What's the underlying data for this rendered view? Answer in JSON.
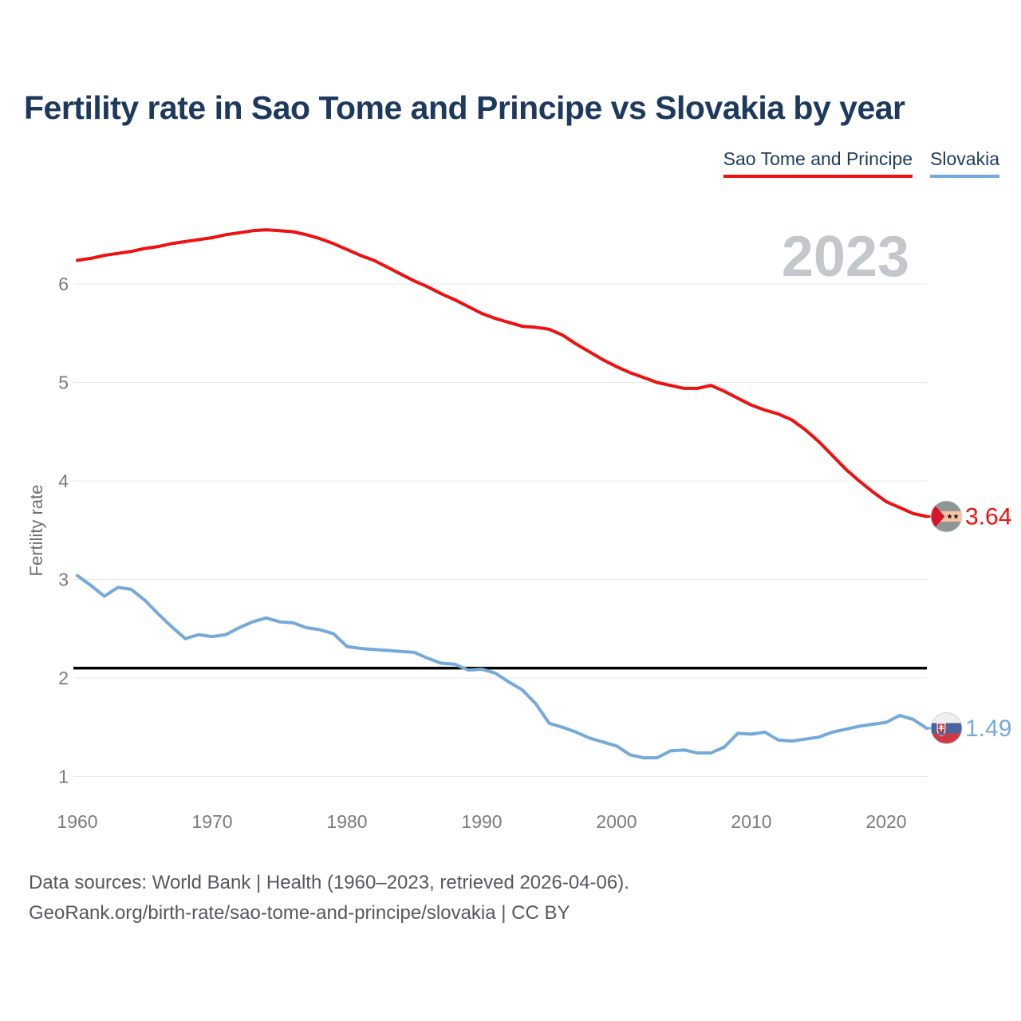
{
  "header": {
    "title": "Fertility rate in Sao Tome and Principe vs Slovakia by year"
  },
  "legend": [
    {
      "label": "Sao Tome and Principe",
      "color": "#ee1111"
    },
    {
      "label": "Slovakia",
      "color": "#74aadb"
    }
  ],
  "chart_data": {
    "type": "line",
    "title": "Fertility rate in Sao Tome and Principe vs Slovakia by year",
    "xlabel": "",
    "ylabel": "Fertility rate",
    "watermark": "2023",
    "grid": true,
    "legend_position": "top-right",
    "x_range": [
      1960,
      2023
    ],
    "xticks": [
      1960,
      1970,
      1980,
      1990,
      2000,
      2010,
      2020
    ],
    "yticks": [
      1,
      2,
      3,
      4,
      5,
      6
    ],
    "ylim": [
      1,
      6.8
    ],
    "reference_line": {
      "value": 2.1,
      "color": "#000000"
    },
    "series": [
      {
        "id": "st",
        "name": "Sao Tome and Principe",
        "color": "#ee1111",
        "end_label": "3.64",
        "flag": "sao-tome-and-principe",
        "values": [
          6.24,
          6.26,
          6.29,
          6.31,
          6.33,
          6.36,
          6.38,
          6.41,
          6.43,
          6.45,
          6.47,
          6.5,
          6.52,
          6.54,
          6.55,
          6.54,
          6.53,
          6.5,
          6.46,
          6.41,
          6.35,
          6.29,
          6.24,
          6.17,
          6.1,
          6.03,
          5.97,
          5.9,
          5.84,
          5.77,
          5.7,
          5.65,
          5.61,
          5.57,
          5.56,
          5.54,
          5.48,
          5.39,
          5.31,
          5.23,
          5.16,
          5.1,
          5.05,
          5.0,
          4.97,
          4.94,
          4.94,
          4.97,
          4.91,
          4.84,
          4.77,
          4.72,
          4.68,
          4.62,
          4.52,
          4.4,
          4.26,
          4.12,
          4.0,
          3.89,
          3.79,
          3.73,
          3.67,
          3.64
        ]
      },
      {
        "id": "sk",
        "name": "Slovakia",
        "color": "#74aadb",
        "end_label": "1.49",
        "flag": "slovakia",
        "values": [
          3.04,
          2.94,
          2.83,
          2.92,
          2.9,
          2.79,
          2.65,
          2.52,
          2.4,
          2.44,
          2.42,
          2.44,
          2.51,
          2.57,
          2.61,
          2.57,
          2.56,
          2.51,
          2.49,
          2.45,
          2.32,
          2.3,
          2.29,
          2.28,
          2.27,
          2.26,
          2.2,
          2.15,
          2.14,
          2.08,
          2.09,
          2.05,
          1.96,
          1.88,
          1.74,
          1.54,
          1.5,
          1.45,
          1.39,
          1.35,
          1.31,
          1.22,
          1.19,
          1.19,
          1.26,
          1.27,
          1.24,
          1.24,
          1.3,
          1.44,
          1.43,
          1.45,
          1.37,
          1.36,
          1.38,
          1.4,
          1.45,
          1.48,
          1.51,
          1.53,
          1.55,
          1.62,
          1.58,
          1.49
        ]
      }
    ]
  },
  "footer": {
    "line1": "Data sources: World Bank | Health (1960–2023, retrieved 2026-04-06).",
    "line2": "GeoRank.org/birth-rate/sao-tome-and-principe/slovakia | CC BY"
  },
  "colors": {
    "title": "#1d3a5e",
    "tick_text": "#7b7b7b",
    "gridline": "#e8e8e8",
    "watermark": "#c4c8cc",
    "footer_text": "#55585c"
  }
}
